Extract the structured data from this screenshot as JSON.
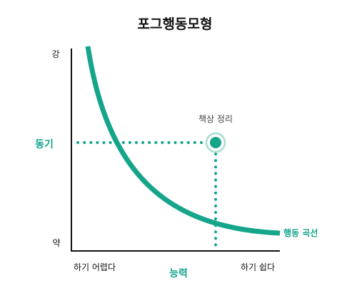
{
  "title": "포그행동모형",
  "y_axis": {
    "label": "동기",
    "top_label": "강",
    "bottom_label": "약"
  },
  "x_axis": {
    "label": "능력",
    "left_label": "하기 어렵다",
    "right_label": "하기 쉽다"
  },
  "curve_label": "행동 곡선",
  "point_label": "책상 정리",
  "colors": {
    "accent": "#14a58a",
    "point_ring": "#a9ddd2",
    "axis": "#111111"
  }
}
